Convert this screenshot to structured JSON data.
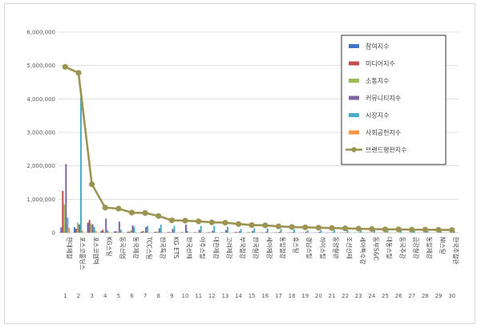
{
  "chart_data": {
    "type": "bar",
    "ylim": [
      0,
      6000000
    ],
    "yticks": [
      0,
      1000000,
      2000000,
      3000000,
      4000000,
      5000000,
      6000000
    ],
    "ytick_labels": [
      "0",
      "1,000,000",
      "2,000,000",
      "3,000,000",
      "4,000,000",
      "5,000,000",
      "6,000,000"
    ],
    "grid": true,
    "legend": "right",
    "ranks": [
      "1",
      "2",
      "3",
      "4",
      "5",
      "6",
      "7",
      "8",
      "9",
      "10",
      "11",
      "12",
      "13",
      "14",
      "15",
      "16",
      "17",
      "18",
      "19",
      "20",
      "21",
      "22",
      "23",
      "24",
      "25",
      "26",
      "27",
      "28",
      "29",
      "30"
    ],
    "categories": [
      "현대제철",
      "포스코홀딩스",
      "포스코엠텍",
      "KG스틸",
      "동국산업",
      "동국제강",
      "TCC스틸",
      "한국특강",
      "KG ETS",
      "한국선재",
      "아주스틸",
      "대한제강",
      "고려제강",
      "부국철강",
      "한국철강",
      "세아제강",
      "동일철강",
      "휴스틸",
      "경남스틸",
      "하이스틸",
      "동양철관",
      "조선선재",
      "세아특수강",
      "동부S&C",
      "대동스틸",
      "동국주강",
      "금강철강",
      "동일제강",
      "NI스틸",
      "한국주철관"
    ],
    "series": [
      {
        "name": "참여지수",
        "type": "bar",
        "color": "#4472c4",
        "values": [
          160000,
          160000,
          300000,
          50000,
          35000,
          30000,
          25000,
          20000,
          18000,
          12000,
          15000,
          12000,
          10000,
          12000,
          10000,
          9000,
          8000,
          7000,
          6000,
          6000,
          5000,
          5000,
          4000,
          4000,
          4000,
          3000,
          3000,
          3000,
          3000,
          2000
        ]
      },
      {
        "name": "미디어지수",
        "type": "bar",
        "color": "#c0504d",
        "values": [
          1250000,
          120000,
          380000,
          90000,
          45000,
          30000,
          50000,
          30000,
          18000,
          12000,
          10000,
          15000,
          10000,
          25000,
          12000,
          10000,
          8000,
          7000,
          6000,
          6000,
          5000,
          5000,
          4000,
          4000,
          4000,
          3000,
          3000,
          3000,
          3000,
          2000
        ]
      },
      {
        "name": "소통지수",
        "type": "bar",
        "color": "#9bbb59",
        "values": [
          850000,
          300000,
          280000,
          30000,
          20000,
          70000,
          35000,
          30000,
          12000,
          8000,
          8000,
          8000,
          6000,
          6000,
          5000,
          5000,
          4000,
          4000,
          3000,
          3000,
          3000,
          2000,
          2000,
          2000,
          2000,
          2000,
          2000,
          2000,
          1000,
          1000
        ]
      },
      {
        "name": "커뮤니티지수",
        "type": "bar",
        "color": "#8064a2",
        "values": [
          2050000,
          250000,
          250000,
          420000,
          330000,
          220000,
          170000,
          130000,
          110000,
          240000,
          90000,
          60000,
          80000,
          40000,
          50000,
          30000,
          25000,
          20000,
          30000,
          25000,
          15000,
          15000,
          12000,
          12000,
          10000,
          10000,
          10000,
          8000,
          8000,
          6000
        ]
      },
      {
        "name": "시장지수",
        "type": "bar",
        "color": "#4bacc6",
        "values": [
          450000,
          4050000,
          170000,
          70000,
          90000,
          180000,
          200000,
          240000,
          200000,
          50000,
          200000,
          200000,
          180000,
          110000,
          130000,
          130000,
          110000,
          100000,
          70000,
          80000,
          90000,
          80000,
          80000,
          70000,
          60000,
          60000,
          50000,
          50000,
          50000,
          40000
        ]
      },
      {
        "name": "사회공헌지수",
        "type": "bar",
        "color": "#f79646",
        "values": [
          150000,
          60000,
          60000,
          20000,
          15000,
          15000,
          10000,
          10000,
          8000,
          6000,
          6000,
          6000,
          5000,
          5000,
          5000,
          4000,
          4000,
          3000,
          3000,
          3000,
          2000,
          2000,
          2000,
          2000,
          2000,
          2000,
          1000,
          1000,
          1000,
          1000
        ]
      },
      {
        "name": "브랜드평판지수",
        "type": "line",
        "color": "#9c9453",
        "values": [
          4960000,
          4780000,
          1450000,
          750000,
          720000,
          600000,
          590000,
          500000,
          370000,
          360000,
          340000,
          310000,
          300000,
          260000,
          230000,
          220000,
          190000,
          170000,
          160000,
          150000,
          140000,
          130000,
          120000,
          110000,
          100000,
          100000,
          90000,
          90000,
          85000,
          80000
        ]
      }
    ]
  }
}
